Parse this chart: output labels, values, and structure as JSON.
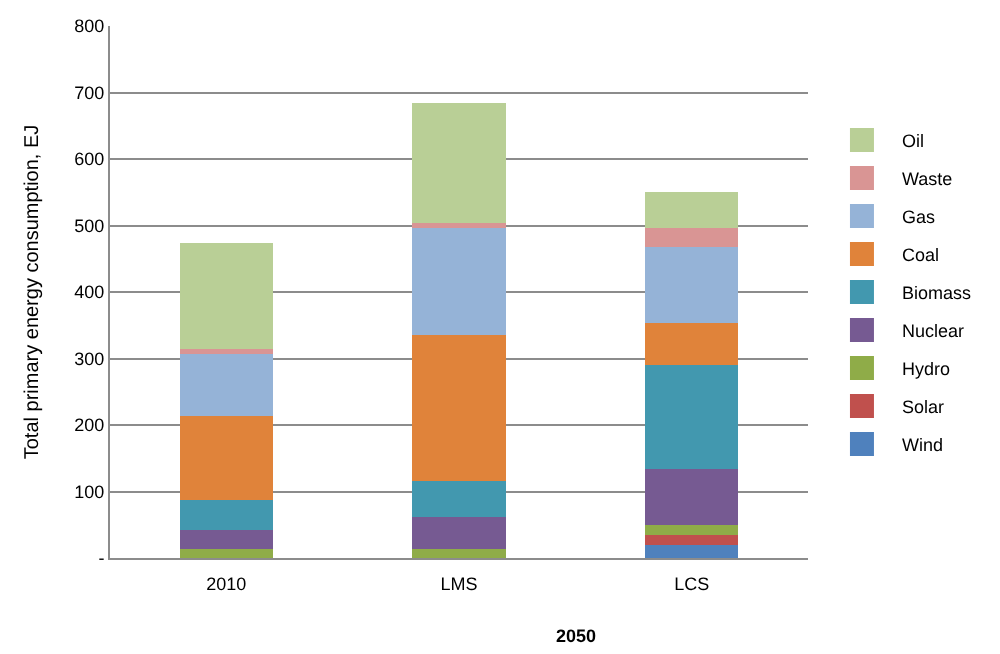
{
  "chart_data": {
    "type": "bar",
    "stacked": true,
    "ylabel": "Total primary energy consumption, EJ",
    "categories": [
      "2010",
      "LMS",
      "LCS"
    ],
    "annotations": [
      "2050"
    ],
    "series": [
      {
        "name": "Wind",
        "color": "#4f81bd",
        "values": [
          0,
          0,
          20
        ]
      },
      {
        "name": "Solar",
        "color": "#c0504d",
        "values": [
          0,
          0,
          15
        ]
      },
      {
        "name": "Hydro",
        "color": "#8fac48",
        "values": [
          13,
          13,
          14
        ]
      },
      {
        "name": "Nuclear",
        "color": "#765a92",
        "values": [
          29,
          49,
          85
        ]
      },
      {
        "name": "Biomass",
        "color": "#4298af",
        "values": [
          45,
          54,
          156
        ]
      },
      {
        "name": "Coal",
        "color": "#e0833a",
        "values": [
          126,
          219,
          64
        ]
      },
      {
        "name": "Gas",
        "color": "#95b3d7",
        "values": [
          96,
          162,
          113
        ]
      },
      {
        "name": "Waste",
        "color": "#d99594",
        "values": [
          5,
          7,
          30
        ]
      },
      {
        "name": "Oil",
        "color": "#b9cf96",
        "values": [
          160,
          180,
          53
        ]
      }
    ],
    "ylim": [
      0,
      800
    ],
    "yticks": [
      {
        "value": 0,
        "label": "-"
      },
      100,
      200,
      300,
      400,
      500,
      600,
      700,
      800
    ],
    "grid": "y",
    "legend": "right"
  }
}
